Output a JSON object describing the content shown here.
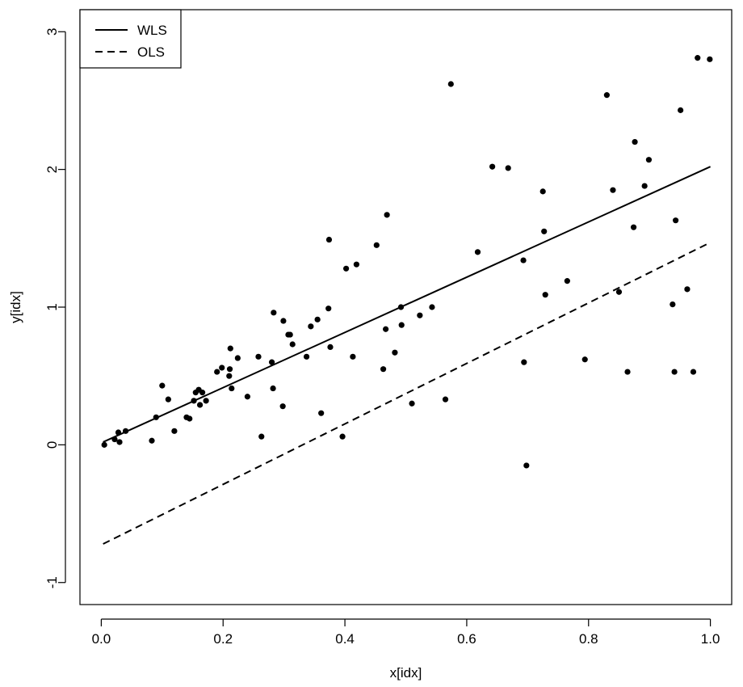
{
  "chart_data": {
    "type": "scatter",
    "xlabel": "x[idx]",
    "ylabel": "y[idx]",
    "xlim": [
      -0.035,
      1.035
    ],
    "ylim": [
      -1.16,
      3.16
    ],
    "x_ticks": [
      0.0,
      0.2,
      0.4,
      0.6,
      0.8,
      1.0
    ],
    "x_tick_labels": [
      "0.0",
      "0.2",
      "0.4",
      "0.6",
      "0.8",
      "1.0"
    ],
    "y_ticks": [
      -1,
      0,
      1,
      2,
      3
    ],
    "y_tick_labels": [
      "-1",
      "0",
      "1",
      "2",
      "3"
    ],
    "grid": false,
    "legend_position": "top-left",
    "legend": [
      {
        "label": "WLS",
        "style": "solid"
      },
      {
        "label": "OLS",
        "style": "dashed"
      }
    ],
    "lines": [
      {
        "name": "WLS",
        "style": "solid",
        "x": [
          0.003,
          1.0
        ],
        "y": [
          0.02,
          2.02
        ]
      },
      {
        "name": "OLS",
        "style": "dashed",
        "x": [
          0.003,
          1.0
        ],
        "y": [
          -0.72,
          1.47
        ]
      }
    ],
    "points": [
      [
        0.005,
        0.0
      ],
      [
        0.022,
        0.04
      ],
      [
        0.028,
        0.09
      ],
      [
        0.03,
        0.02
      ],
      [
        0.04,
        0.1
      ],
      [
        0.083,
        0.03
      ],
      [
        0.09,
        0.2
      ],
      [
        0.1,
        0.43
      ],
      [
        0.11,
        0.33
      ],
      [
        0.12,
        0.1
      ],
      [
        0.14,
        0.2
      ],
      [
        0.145,
        0.19
      ],
      [
        0.152,
        0.32
      ],
      [
        0.155,
        0.38
      ],
      [
        0.16,
        0.4
      ],
      [
        0.162,
        0.29
      ],
      [
        0.166,
        0.38
      ],
      [
        0.172,
        0.32
      ],
      [
        0.19,
        0.53
      ],
      [
        0.198,
        0.56
      ],
      [
        0.21,
        0.5
      ],
      [
        0.211,
        0.55
      ],
      [
        0.212,
        0.7
      ],
      [
        0.214,
        0.41
      ],
      [
        0.224,
        0.63
      ],
      [
        0.24,
        0.35
      ],
      [
        0.258,
        0.64
      ],
      [
        0.263,
        0.06
      ],
      [
        0.28,
        0.6
      ],
      [
        0.282,
        0.41
      ],
      [
        0.283,
        0.96
      ],
      [
        0.298,
        0.28
      ],
      [
        0.299,
        0.9
      ],
      [
        0.307,
        0.8
      ],
      [
        0.31,
        0.8
      ],
      [
        0.314,
        0.73
      ],
      [
        0.337,
        0.64
      ],
      [
        0.344,
        0.86
      ],
      [
        0.355,
        0.91
      ],
      [
        0.361,
        0.23
      ],
      [
        0.373,
        0.99
      ],
      [
        0.374,
        1.49
      ],
      [
        0.376,
        0.71
      ],
      [
        0.396,
        0.06
      ],
      [
        0.402,
        1.28
      ],
      [
        0.413,
        0.64
      ],
      [
        0.419,
        1.31
      ],
      [
        0.452,
        1.45
      ],
      [
        0.463,
        0.55
      ],
      [
        0.467,
        0.84
      ],
      [
        0.469,
        1.67
      ],
      [
        0.482,
        0.67
      ],
      [
        0.492,
        1.0
      ],
      [
        0.493,
        0.87
      ],
      [
        0.51,
        0.3
      ],
      [
        0.523,
        0.94
      ],
      [
        0.543,
        1.0
      ],
      [
        0.565,
        0.33
      ],
      [
        0.574,
        2.62
      ],
      [
        0.618,
        1.4
      ],
      [
        0.642,
        2.02
      ],
      [
        0.668,
        2.01
      ],
      [
        0.693,
        1.34
      ],
      [
        0.694,
        0.6
      ],
      [
        0.698,
        -0.15
      ],
      [
        0.725,
        1.84
      ],
      [
        0.727,
        1.55
      ],
      [
        0.729,
        1.09
      ],
      [
        0.765,
        1.19
      ],
      [
        0.794,
        0.62
      ],
      [
        0.83,
        2.54
      ],
      [
        0.84,
        1.85
      ],
      [
        0.85,
        1.11
      ],
      [
        0.864,
        0.53
      ],
      [
        0.874,
        1.58
      ],
      [
        0.876,
        2.2
      ],
      [
        0.892,
        1.88
      ],
      [
        0.899,
        2.07
      ],
      [
        0.938,
        1.02
      ],
      [
        0.941,
        0.53
      ],
      [
        0.943,
        1.63
      ],
      [
        0.951,
        2.43
      ],
      [
        0.962,
        1.13
      ],
      [
        0.972,
        0.53
      ],
      [
        0.979,
        2.81
      ],
      [
        0.999,
        2.8
      ]
    ]
  }
}
